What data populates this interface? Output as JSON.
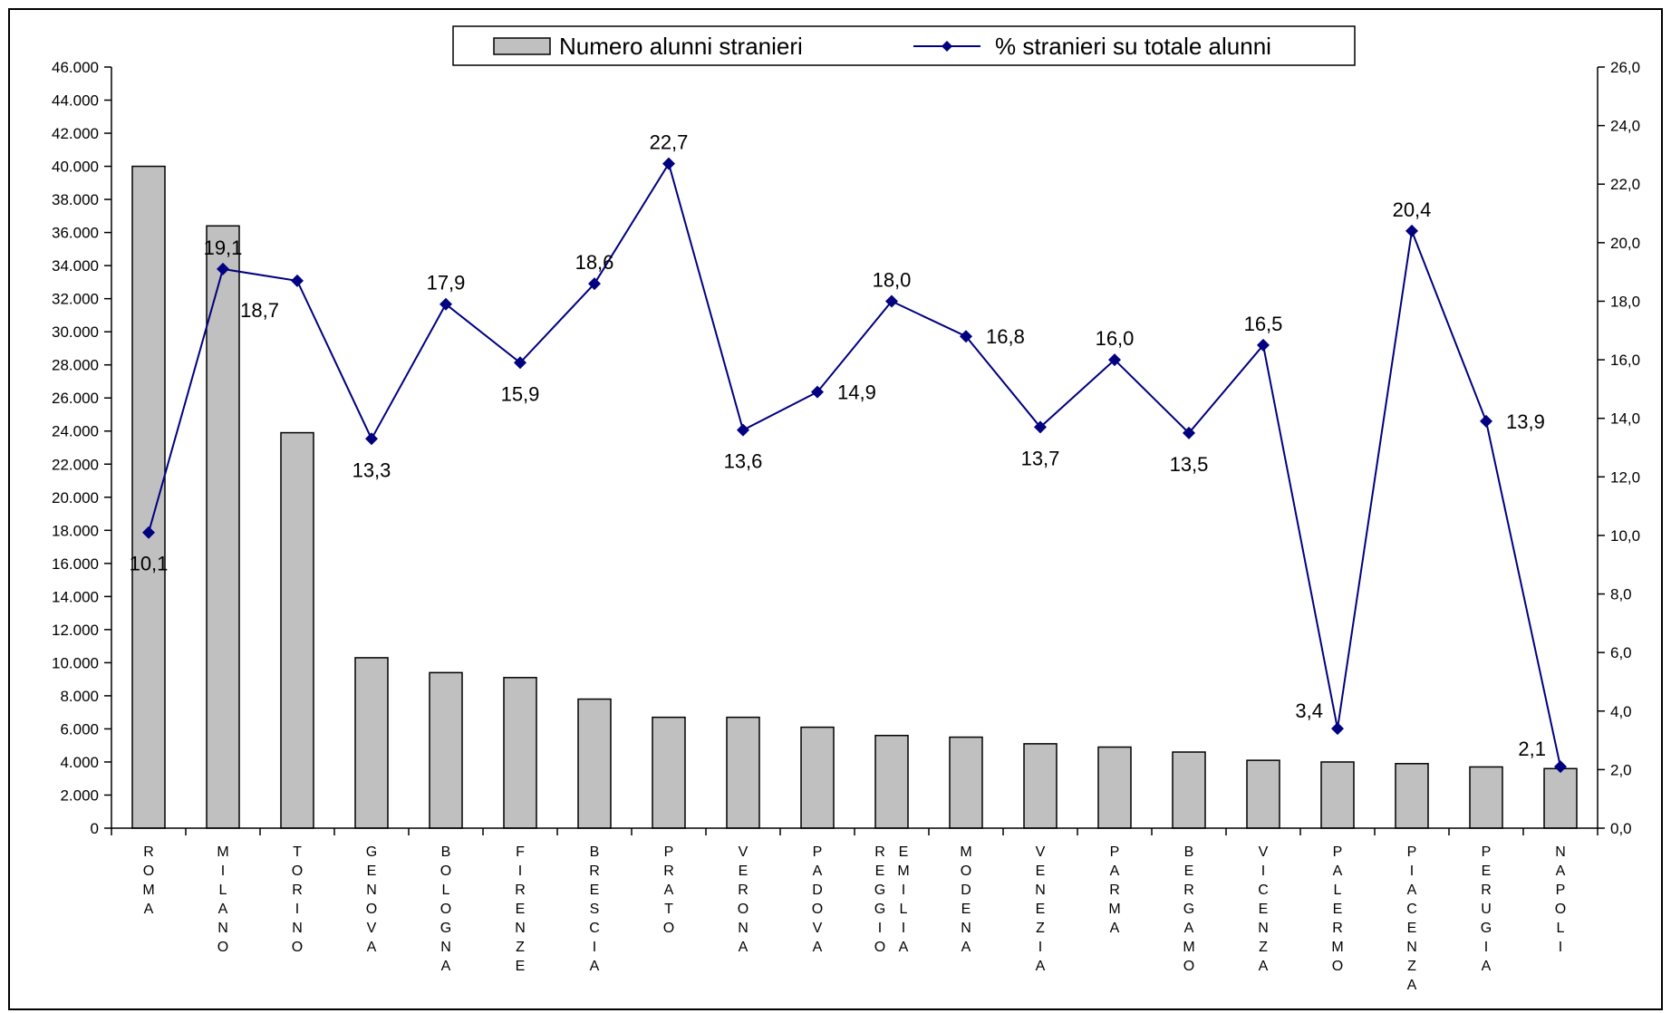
{
  "chart_data": {
    "type": "bar+line",
    "categories": [
      "ROMA",
      "MILANO",
      "TORINO",
      "GENOVA",
      "BOLOGNA",
      "FIRENZE",
      "BRESCIA",
      "PRATO",
      "VERONA",
      "PADOVA",
      "REGGIO EMILIA",
      "MODENA",
      "VENEZIA",
      "PARMA",
      "BERGAMO",
      "VICENZA",
      "PALERMO",
      "PIACENZA",
      "PERUGIA",
      "NAPOLI"
    ],
    "category_columns": [
      [
        "ROMA"
      ],
      [
        "MILANO"
      ],
      [
        "TORINO"
      ],
      [
        "GENOVA"
      ],
      [
        "BOLOGNA"
      ],
      [
        "FIRENZE"
      ],
      [
        "BRESCIA"
      ],
      [
        "PRATO"
      ],
      [
        "VERONA"
      ],
      [
        "PADOVA"
      ],
      [
        "REGGIO",
        "EMILIA"
      ],
      [
        "MODENA"
      ],
      [
        "VENEZIA"
      ],
      [
        "PARMA"
      ],
      [
        "BERGAMO"
      ],
      [
        "VICENZA"
      ],
      [
        "PALERMO"
      ],
      [
        "PIACENZA"
      ],
      [
        "PERUGIA"
      ],
      [
        "NAPOLI"
      ]
    ],
    "series": [
      {
        "name": "Numero alunni stranieri",
        "type": "bar",
        "axis": "left",
        "color": "#c0c0c0",
        "values": [
          40000,
          36400,
          23900,
          10300,
          9400,
          9100,
          7800,
          6700,
          6700,
          6100,
          5600,
          5500,
          5100,
          4900,
          4600,
          4100,
          4000,
          3900,
          3700,
          3600
        ]
      },
      {
        "name": "% stranieri su totale alunni",
        "type": "line",
        "axis": "right",
        "color": "#000080",
        "values": [
          10.1,
          19.1,
          18.7,
          13.3,
          17.9,
          15.9,
          18.6,
          22.7,
          13.6,
          14.9,
          18.0,
          16.8,
          13.7,
          16.0,
          13.5,
          16.5,
          3.4,
          20.4,
          13.9,
          2.1
        ],
        "labels": [
          "10,1",
          "19,1",
          "18,7",
          "13,3",
          "17,9",
          "15,9",
          "18,6",
          "22,7",
          "13,6",
          "14,9",
          "18,0",
          "16,8",
          "13,7",
          "16,0",
          "13,5",
          "16,5",
          "3,4",
          "20,4",
          "13,9",
          "2,1"
        ]
      }
    ],
    "y_left": {
      "min": 0,
      "max": 46000,
      "step": 2000,
      "tick_labels": [
        "0",
        "2.000",
        "4.000",
        "6.000",
        "8.000",
        "10.000",
        "12.000",
        "14.000",
        "16.000",
        "18.000",
        "20.000",
        "22.000",
        "24.000",
        "26.000",
        "28.000",
        "30.000",
        "32.000",
        "34.000",
        "36.000",
        "38.000",
        "40.000",
        "42.000",
        "44.000",
        "46.000"
      ]
    },
    "y_right": {
      "min": 0,
      "max": 26,
      "step": 2,
      "tick_labels": [
        "0,0",
        "2,0",
        "4,0",
        "6,0",
        "8,0",
        "10,0",
        "12,0",
        "14,0",
        "16,0",
        "18,0",
        "20,0",
        "22,0",
        "24,0",
        "26,0"
      ]
    },
    "legend": {
      "placement": "top-center"
    },
    "grid": false
  }
}
